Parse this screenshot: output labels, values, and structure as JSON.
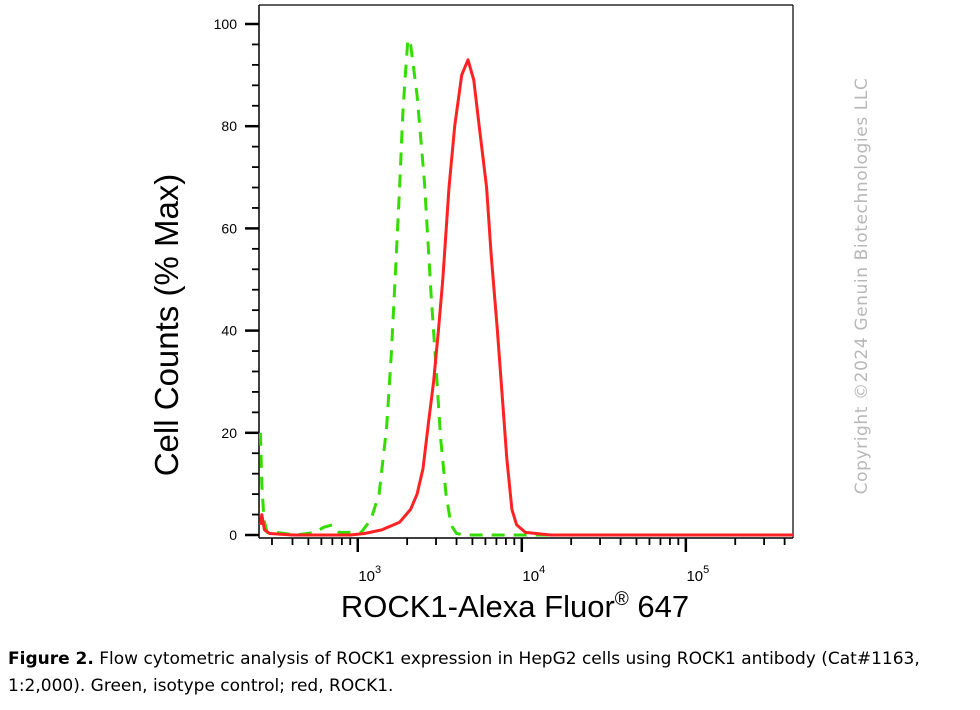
{
  "chart_data": {
    "type": "line",
    "title": "",
    "xlabel": "ROCK1-Alexa Fluor",
    "xlabel_sup": "®",
    "xlabel_tail": " 647",
    "ylabel": "Cell Counts (% Max)",
    "xscale": "log",
    "xlim": [
      250,
      450000
    ],
    "ylim": [
      0,
      100
    ],
    "yticks": [
      0,
      20,
      40,
      60,
      80,
      100
    ],
    "ytick_labels": [
      "0",
      "20",
      "40",
      "60",
      "80",
      "100"
    ],
    "xticks_major": [
      1000,
      10000,
      100000
    ],
    "xtick_labels": [
      {
        "base": "10",
        "exp": "3"
      },
      {
        "base": "10",
        "exp": "4"
      },
      {
        "base": "10",
        "exp": "5"
      }
    ],
    "grid": false,
    "legend": "none",
    "series": [
      {
        "color": "#33dd00",
        "line_style": "dashed",
        "points": [
          [
            255,
            20
          ],
          [
            260,
            10
          ],
          [
            268,
            3
          ],
          [
            280,
            0.5
          ],
          [
            320,
            0.5
          ],
          [
            420,
            0
          ],
          [
            550,
            0.5
          ],
          [
            620,
            1.5
          ],
          [
            700,
            2
          ],
          [
            770,
            0.5
          ],
          [
            900,
            0.5
          ],
          [
            1050,
            0.5
          ],
          [
            1200,
            3
          ],
          [
            1350,
            8
          ],
          [
            1500,
            21
          ],
          [
            1600,
            35
          ],
          [
            1700,
            52
          ],
          [
            1800,
            68
          ],
          [
            1880,
            82
          ],
          [
            1950,
            90
          ],
          [
            2020,
            97
          ],
          [
            2100,
            96
          ],
          [
            2300,
            86
          ],
          [
            2550,
            69
          ],
          [
            2800,
            47
          ],
          [
            3000,
            33
          ],
          [
            3200,
            19
          ],
          [
            3450,
            8
          ],
          [
            3700,
            2
          ],
          [
            4000,
            0.3
          ],
          [
            4500,
            0
          ],
          [
            6000,
            0
          ],
          [
            10000,
            0
          ],
          [
            100000,
            0
          ],
          [
            450000,
            0
          ]
        ]
      },
      {
        "color": "#ff2222",
        "line_style": "solid",
        "points": [
          [
            255,
            2
          ],
          [
            260,
            4
          ],
          [
            270,
            1
          ],
          [
            290,
            0.3
          ],
          [
            400,
            0
          ],
          [
            900,
            0
          ],
          [
            1100,
            0.3
          ],
          [
            1400,
            1
          ],
          [
            1800,
            2.5
          ],
          [
            2100,
            5
          ],
          [
            2300,
            8
          ],
          [
            2500,
            13
          ],
          [
            2700,
            22
          ],
          [
            2900,
            30
          ],
          [
            3100,
            40
          ],
          [
            3300,
            50
          ],
          [
            3600,
            68
          ],
          [
            3900,
            80
          ],
          [
            4300,
            90
          ],
          [
            4700,
            93
          ],
          [
            5100,
            89
          ],
          [
            5500,
            80
          ],
          [
            6100,
            68
          ],
          [
            6500,
            55
          ],
          [
            7100,
            40
          ],
          [
            7600,
            27
          ],
          [
            8100,
            15
          ],
          [
            8700,
            5
          ],
          [
            9300,
            2
          ],
          [
            10500,
            0.5
          ],
          [
            15000,
            0
          ],
          [
            100000,
            0
          ],
          [
            450000,
            0
          ]
        ]
      }
    ]
  },
  "watermark": "Copyright ©2024 Genuin Biotechnologies LLC",
  "caption": {
    "label": "Figure 2.",
    "text": " Flow cytometric analysis of ROCK1 expression in HepG2 cells using ROCK1 antibody (Cat#1163, 1:2,000). Green, isotype control; red, ROCK1."
  }
}
